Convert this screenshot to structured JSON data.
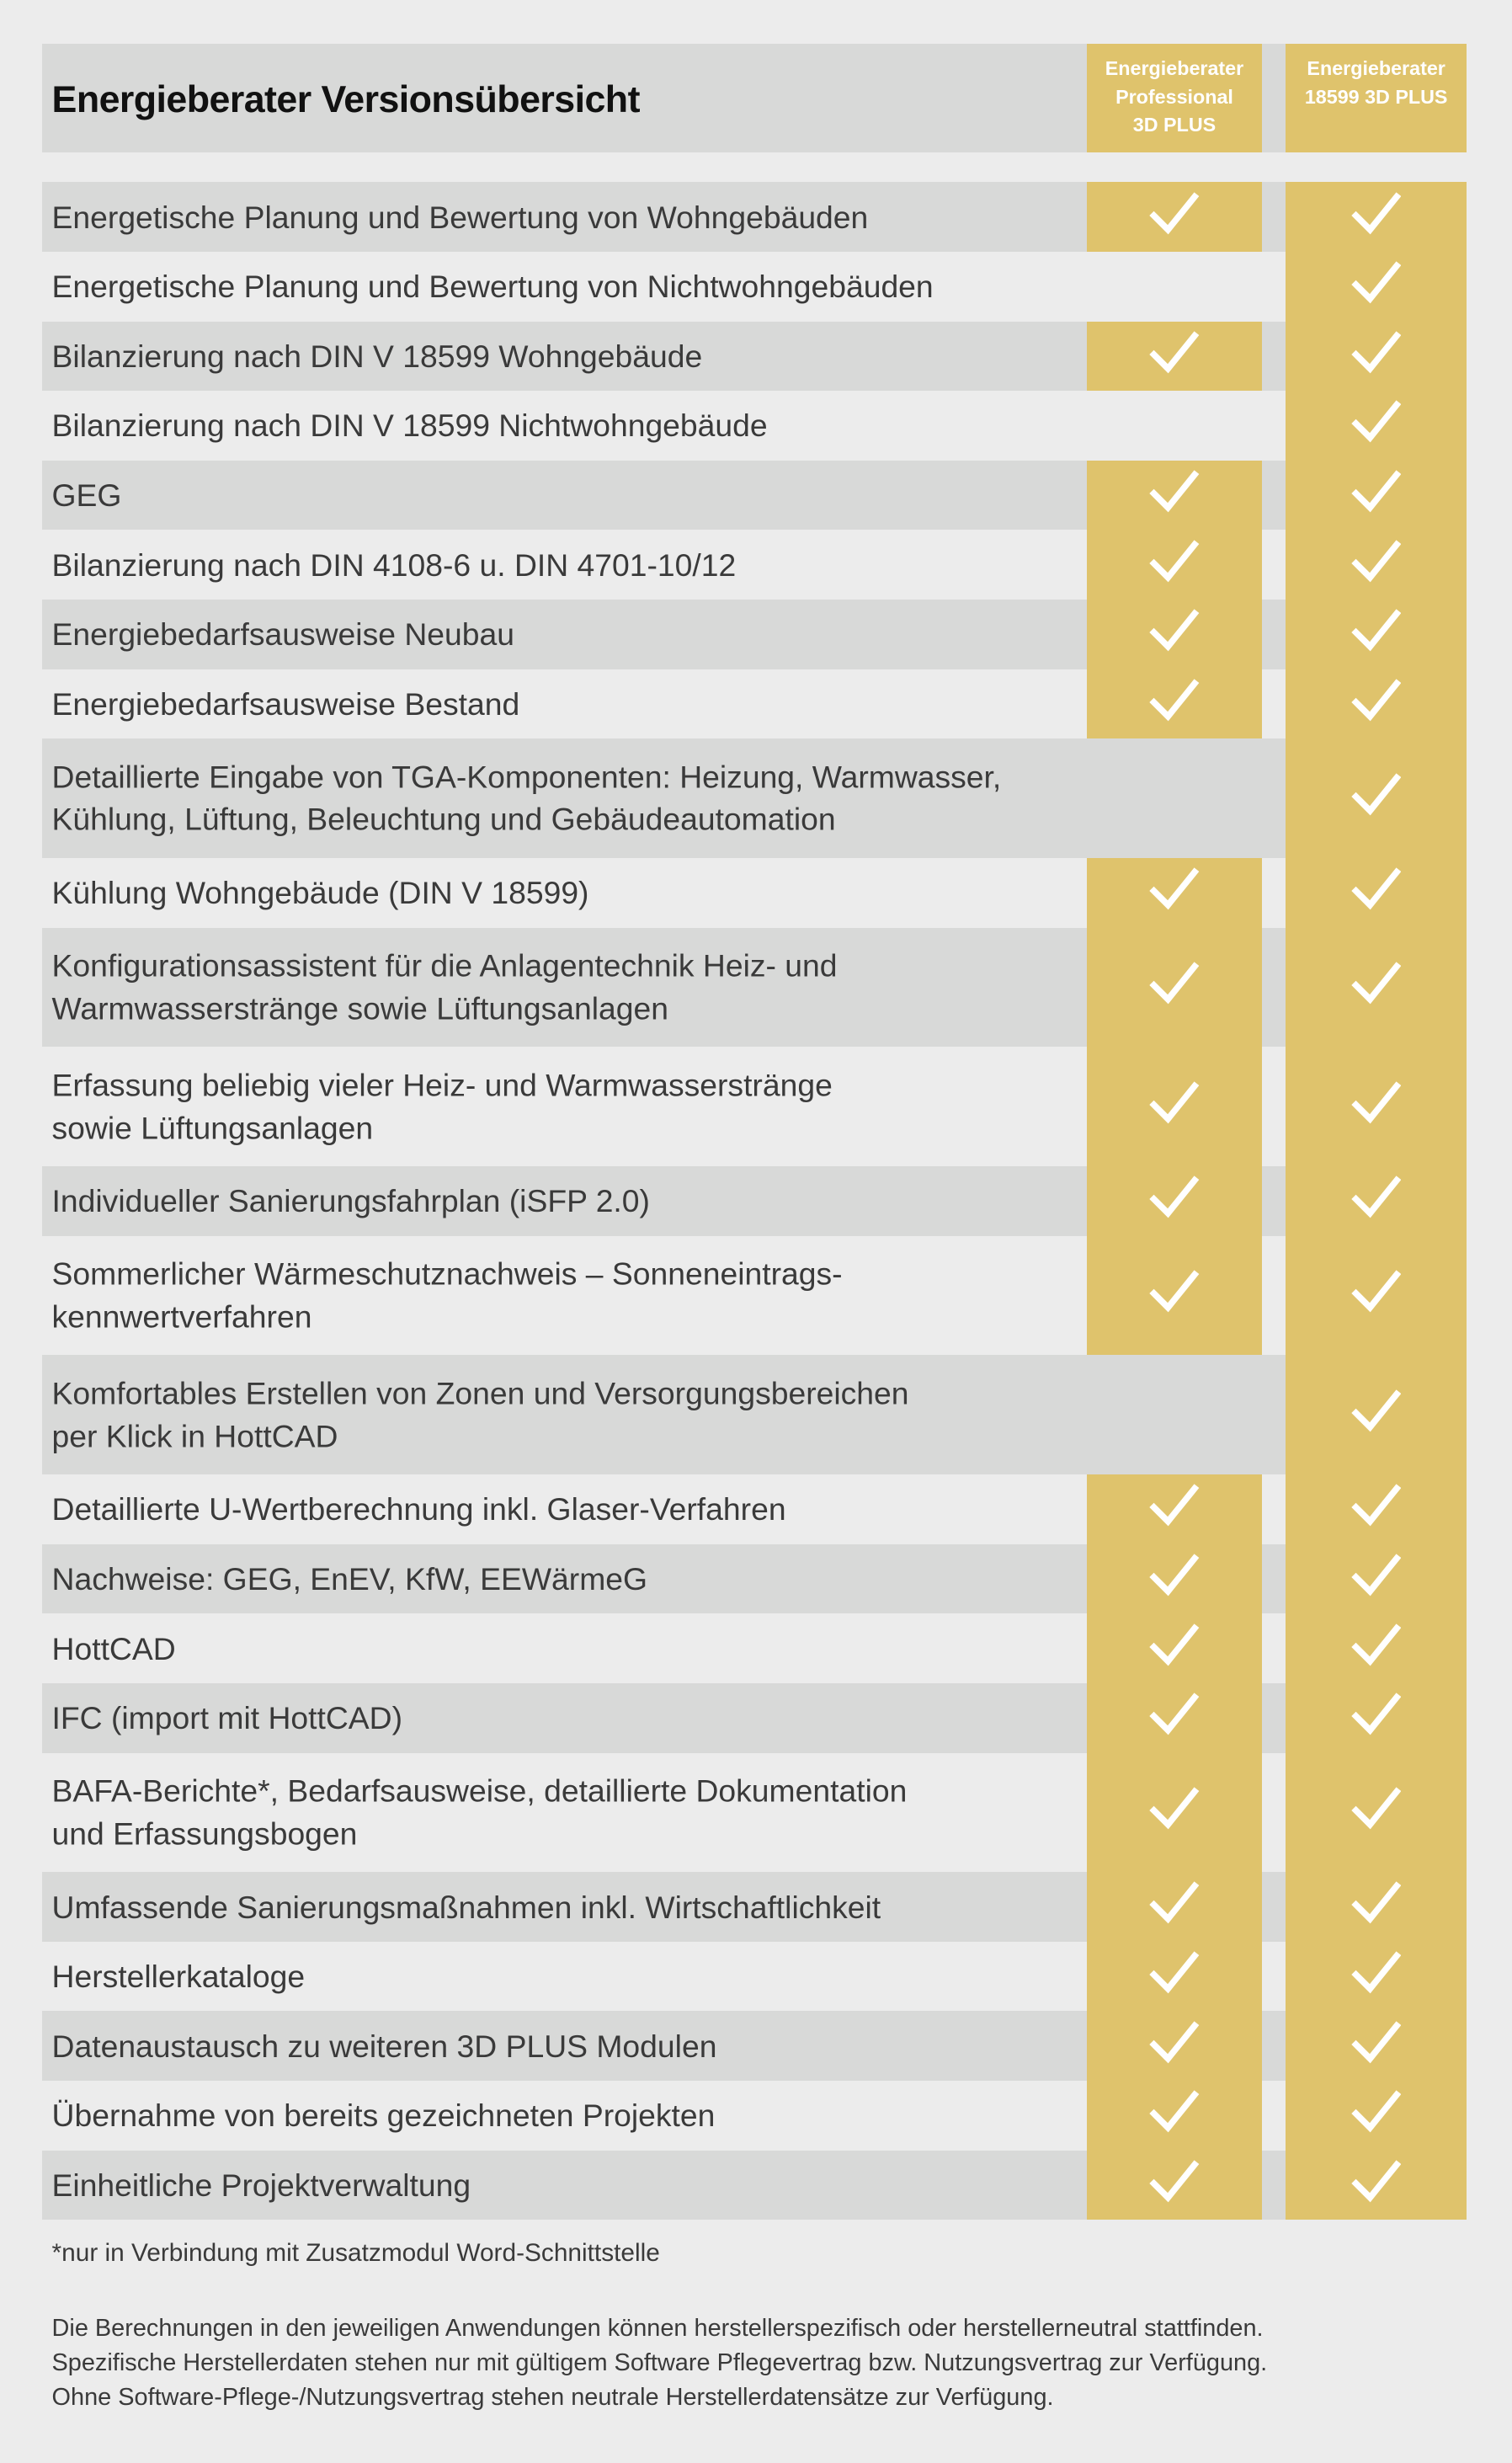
{
  "header": {
    "title": "Energieberater Versionsübersicht",
    "columns": [
      {
        "label_lines": [
          "Energieberater",
          "Professional",
          "3D PLUS"
        ]
      },
      {
        "label_lines": [
          "Energieberater",
          "18599 3D PLUS"
        ]
      }
    ]
  },
  "colors": {
    "accent": "#dfc36c",
    "row_shade": "#d8d9d8",
    "background": "#ececec"
  },
  "check_icon": "check-mark-icon",
  "rows": [
    {
      "label": [
        "Energetische Planung und Bewertung von Wohngebäuden"
      ],
      "professional": true,
      "plus18599": true
    },
    {
      "label": [
        "Energetische Planung und Bewertung von Nichtwohngebäuden"
      ],
      "professional": false,
      "plus18599": true
    },
    {
      "label": [
        "Bilanzierung nach DIN V 18599 Wohngebäude"
      ],
      "professional": true,
      "plus18599": true
    },
    {
      "label": [
        "Bilanzierung nach DIN V 18599 Nichtwohngebäude"
      ],
      "professional": false,
      "plus18599": true
    },
    {
      "label": [
        "GEG"
      ],
      "professional": true,
      "plus18599": true
    },
    {
      "label": [
        "Bilanzierung nach DIN 4108-6 u. DIN 4701-10/12"
      ],
      "professional": true,
      "plus18599": true
    },
    {
      "label": [
        "Energiebedarfsausweise Neubau"
      ],
      "professional": true,
      "plus18599": true
    },
    {
      "label": [
        "Energiebedarfsausweise Bestand"
      ],
      "professional": true,
      "plus18599": true
    },
    {
      "label": [
        "Detaillierte Eingabe von TGA-Komponenten: Heizung, Warmwasser,",
        "Kühlung, Lüftung, Beleuchtung und Gebäudeautomation"
      ],
      "professional": false,
      "plus18599": true
    },
    {
      "label": [
        "Kühlung Wohngebäude (DIN V 18599)"
      ],
      "professional": true,
      "plus18599": true
    },
    {
      "label": [
        "Konfigurationsassistent für die Anlagentechnik Heiz- und",
        "Warmwasserstränge sowie Lüftungsanlagen"
      ],
      "professional": true,
      "plus18599": true
    },
    {
      "label": [
        "Erfassung beliebig vieler Heiz- und Warmwasserstränge",
        "sowie Lüftungsanlagen"
      ],
      "professional": true,
      "plus18599": true
    },
    {
      "label": [
        "Individueller Sanierungsfahrplan (iSFP 2.0)"
      ],
      "professional": true,
      "plus18599": true
    },
    {
      "label": [
        "Sommerlicher Wärmeschutznachweis – Sonneneintrags-",
        "kennwertverfahren"
      ],
      "professional": true,
      "plus18599": true
    },
    {
      "label": [
        "Komfortables Erstellen von Zonen und Versorgungsbereichen",
        "per Klick in HottCAD"
      ],
      "professional": false,
      "plus18599": true
    },
    {
      "label": [
        "Detaillierte U-Wertberechnung inkl. Glaser-Verfahren"
      ],
      "professional": true,
      "plus18599": true
    },
    {
      "label": [
        "Nachweise: GEG, EnEV, KfW, EEWärmeG"
      ],
      "professional": true,
      "plus18599": true
    },
    {
      "label": [
        "HottCAD"
      ],
      "professional": true,
      "plus18599": true
    },
    {
      "label": [
        "IFC (import mit HottCAD)"
      ],
      "professional": true,
      "plus18599": true
    },
    {
      "label": [
        "BAFA-Berichte*, Bedarfsausweise, detaillierte Dokumentation",
        "und Erfassungsbogen"
      ],
      "professional": true,
      "plus18599": true
    },
    {
      "label": [
        "Umfassende Sanierungsmaßnahmen inkl. Wirtschaftlichkeit"
      ],
      "professional": true,
      "plus18599": true
    },
    {
      "label": [
        "Herstellerkataloge"
      ],
      "professional": true,
      "plus18599": true
    },
    {
      "label": [
        "Datenaustausch zu weiteren 3D PLUS Modulen"
      ],
      "professional": true,
      "plus18599": true
    },
    {
      "label": [
        "Übernahme von bereits gezeichneten Projekten"
      ],
      "professional": true,
      "plus18599": true
    },
    {
      "label": [
        "Einheitliche Projektverwaltung"
      ],
      "professional": true,
      "plus18599": true
    }
  ],
  "footnote": "*nur in Verbindung mit Zusatzmodul Word-Schnittstelle",
  "note_lines": [
    "Die Berechnungen in den jeweiligen Anwendungen können herstellerspezifisch oder herstellerneutral stattfinden.",
    "Spezifische Herstellerdaten stehen nur mit gültigem Software Pflegevertrag bzw. Nutzungsvertrag zur Verfügung.",
    "Ohne Software-Pflege-/Nutzungsvertrag stehen neutrale Herstellerdatensätze zur Verfügung."
  ]
}
